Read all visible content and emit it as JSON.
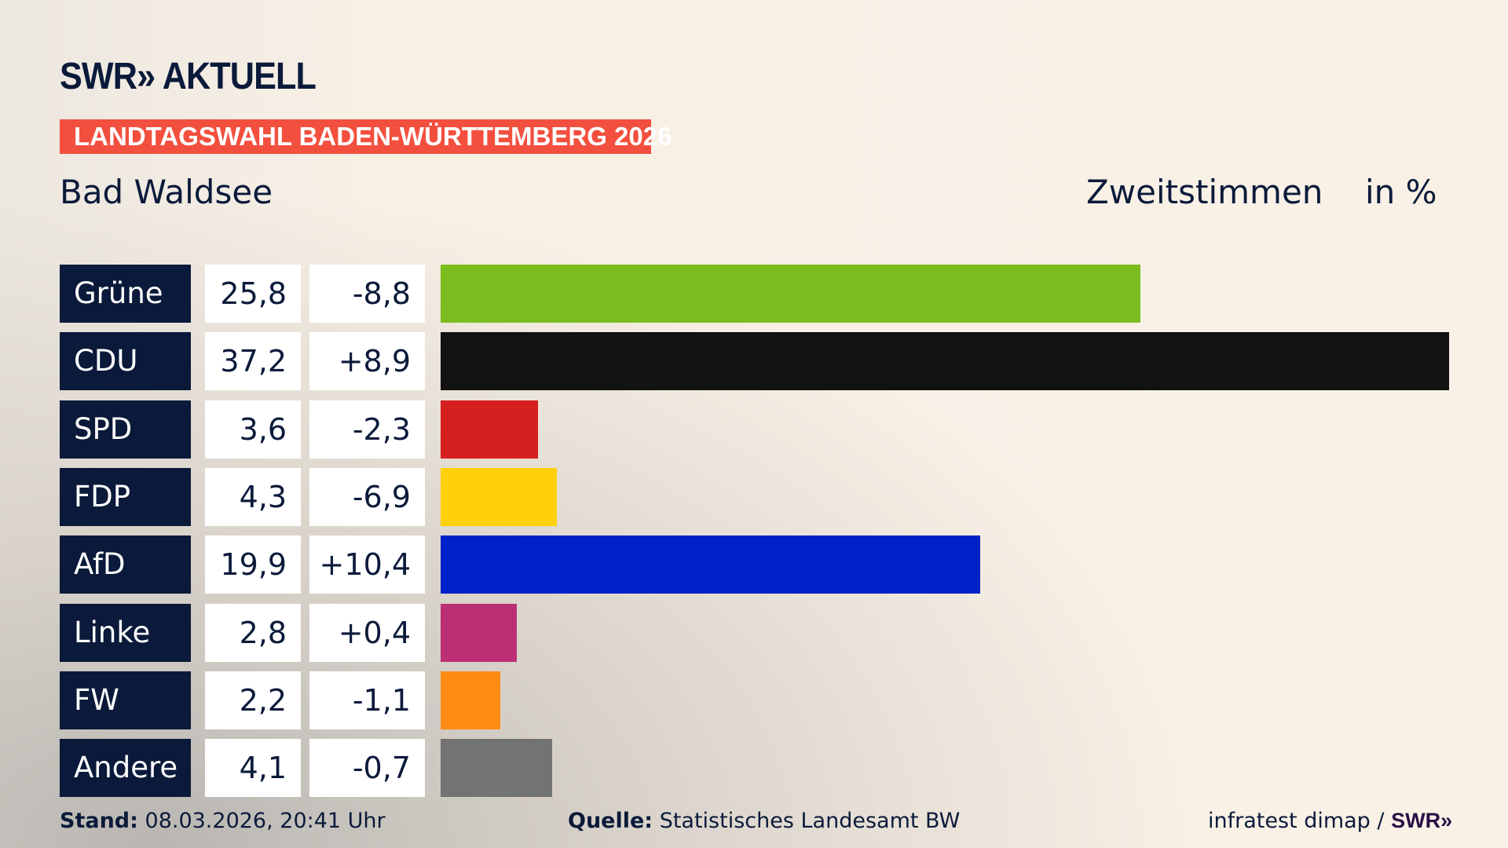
{
  "header": {
    "logo_text": "SWR» AKTUELL",
    "banner": "LANDTAGSWAHL BADEN-WÜRTTEMBERG 2026",
    "region": "Bad Waldsee",
    "measure": "Zweitstimmen",
    "unit": "in %"
  },
  "chart_data": {
    "type": "bar",
    "orientation": "horizontal",
    "categories": [
      "Grüne",
      "CDU",
      "SPD",
      "FDP",
      "AfD",
      "Linke",
      "FW",
      "Andere"
    ],
    "values": [
      25.8,
      37.2,
      3.6,
      4.3,
      19.9,
      2.8,
      2.2,
      4.1
    ],
    "value_labels": [
      "25,8",
      "37,2",
      "3,6",
      "4,3",
      "19,9",
      "2,8",
      "2,2",
      "4,1"
    ],
    "diff_labels": [
      "-8,8",
      "+8,9",
      "-2,3",
      "-6,9",
      "+10,4",
      "+0,4",
      "-1,1",
      "-0,7"
    ],
    "colors": [
      "#7bbd1e",
      "#121212",
      "#d61f1f",
      "#ffd10a",
      "#0021c7",
      "#bc2f74",
      "#ff8a14",
      "#737373"
    ],
    "ylim": [
      0,
      37.2
    ]
  },
  "footer": {
    "stand_label": "Stand:",
    "stand_value": "08.03.2026, 20:41 Uhr",
    "source_label": "Quelle:",
    "source_value": "Statistisches Landesamt BW",
    "credit": "infratest dimap /",
    "credit_logo": "SWR»"
  }
}
